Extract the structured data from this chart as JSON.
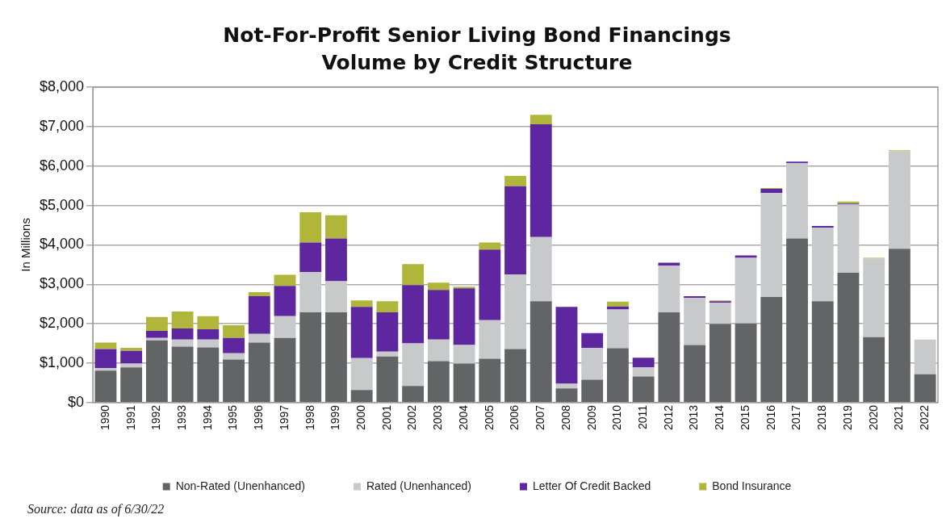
{
  "chart_data": {
    "type": "bar",
    "stacked": true,
    "title": "Not-For-Profit Senior Living Bond Financings",
    "subtitle": "Volume by Credit Structure",
    "ylabel": "In Millions",
    "categories": [
      "1990",
      "1991",
      "1992",
      "1993",
      "1994",
      "1995",
      "1996",
      "1997",
      "1998",
      "1999",
      "2000",
      "2001",
      "2002",
      "2003",
      "2004",
      "2005",
      "2006",
      "2007",
      "2008",
      "2009",
      "2010",
      "2011",
      "2012",
      "2013",
      "2014",
      "2015",
      "2016",
      "2017",
      "2018",
      "2019",
      "2020",
      "2021",
      "2022"
    ],
    "series": [
      {
        "name": "Non-Rated (Unenhanced)",
        "color": "#636466",
        "values": [
          810,
          890,
          1580,
          1420,
          1400,
          1090,
          1520,
          1640,
          2290,
          2290,
          320,
          1170,
          420,
          1050,
          990,
          1110,
          1360,
          2570,
          360,
          580,
          1380,
          660,
          2290,
          1460,
          2000,
          2010,
          2680,
          4160,
          2570,
          3290,
          1660,
          3900,
          720
        ]
      },
      {
        "name": "Rated (Unenhanced)",
        "color": "#c8c9cb",
        "values": [
          60,
          100,
          60,
          180,
          200,
          160,
          220,
          550,
          1020,
          790,
          810,
          120,
          1080,
          550,
          470,
          980,
          1890,
          1630,
          120,
          810,
          980,
          240,
          1180,
          1200,
          530,
          1660,
          2640,
          1910,
          1870,
          1730,
          1990,
          2480,
          880
        ]
      },
      {
        "name": "Letter Of Credit Backed",
        "color": "#5e27a0",
        "values": [
          490,
          320,
          180,
          280,
          260,
          390,
          960,
          770,
          750,
          1080,
          1300,
          1000,
          1480,
          1260,
          1440,
          1790,
          2240,
          2860,
          1950,
          370,
          80,
          240,
          80,
          40,
          40,
          60,
          100,
          40,
          40,
          30,
          0,
          0,
          0
        ]
      },
      {
        "name": "Bond Insurance",
        "color": "#b0b63a",
        "values": [
          160,
          80,
          350,
          430,
          330,
          320,
          100,
          280,
          770,
          590,
          160,
          280,
          530,
          180,
          40,
          180,
          260,
          240,
          0,
          0,
          120,
          0,
          0,
          0,
          20,
          0,
          20,
          0,
          0,
          50,
          20,
          20,
          0
        ]
      }
    ],
    "ylim": [
      0,
      8000
    ],
    "yticks": [
      {
        "value": 0,
        "label": "$0"
      },
      {
        "value": 1000,
        "label": "$1,000"
      },
      {
        "value": 2000,
        "label": "$2,000"
      },
      {
        "value": 3000,
        "label": "$3,000"
      },
      {
        "value": 4000,
        "label": "$4,000"
      },
      {
        "value": 5000,
        "label": "$5,000"
      },
      {
        "value": 6000,
        "label": "$6,000"
      },
      {
        "value": 7000,
        "label": "$7,000"
      },
      {
        "value": 8000,
        "label": "$8,000"
      }
    ],
    "grid": "y",
    "legend": "bottom",
    "annotations": [
      "Source: data as of 6/30/22"
    ]
  }
}
